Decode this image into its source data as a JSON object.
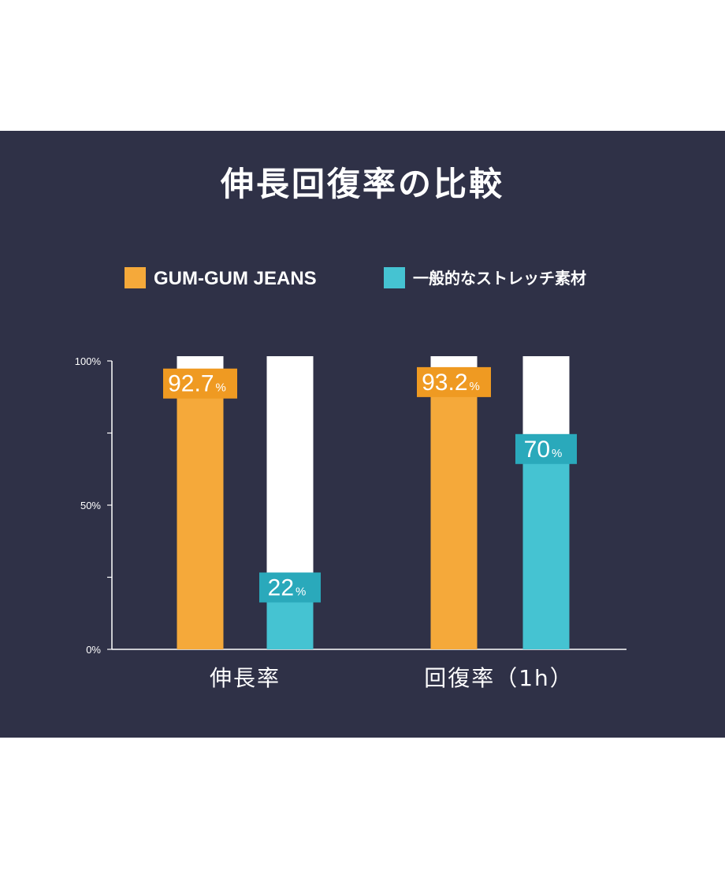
{
  "chart_data": {
    "type": "bar",
    "title": "伸長回復率の比較",
    "categories": [
      "伸長率",
      "回復率（1h）"
    ],
    "series": [
      {
        "name": "GUM-GUM JEANS",
        "values": [
          92.7,
          93.2
        ],
        "color": "#f5a93a"
      },
      {
        "name": "一般的なストレッチ素材",
        "values": [
          22,
          70
        ],
        "color": "#45c3d2"
      }
    ],
    "value_labels": [
      [
        "92.7",
        "93.2"
      ],
      [
        "22",
        "70"
      ]
    ],
    "value_unit": "%",
    "yticks": [
      "0%",
      "50%",
      "100%"
    ],
    "ylim": [
      0,
      100
    ],
    "background_bar_color": "#ffffff",
    "legend_position": "top",
    "grid": false
  },
  "colors": {
    "panel_background": "#2f3147"
  }
}
